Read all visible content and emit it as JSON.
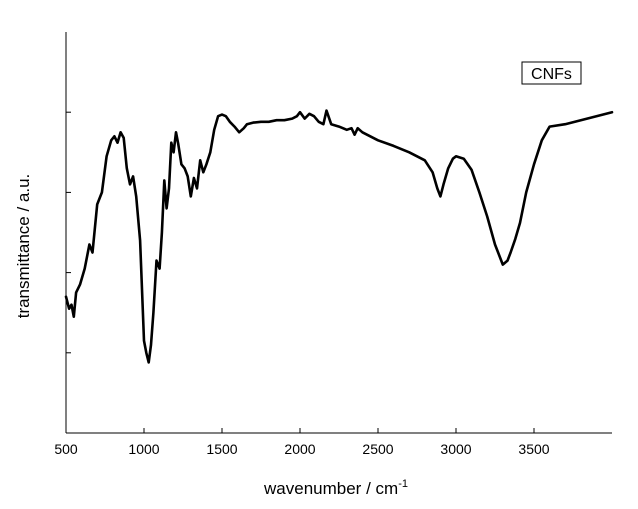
{
  "chart_data": {
    "type": "line",
    "xlabel": "wavenumber / cm",
    "xlabel_superscript": "-1",
    "ylabel": "transmittance / a.u.",
    "xlim": [
      500,
      4000
    ],
    "ylim": [
      0,
      5
    ],
    "x_ticks": [
      500,
      1000,
      1500,
      2000,
      2500,
      3000,
      3500
    ],
    "x_tick_labels": [
      "500",
      "1000",
      "1500",
      "2000",
      "2500",
      "3000",
      "3500"
    ],
    "y_ticks": [
      1,
      2,
      3,
      4
    ],
    "y_tick_labels_shown": false,
    "grid": false,
    "legend": {
      "label": "CNFs",
      "placement": "top-right",
      "boxed": true
    },
    "series": [
      {
        "name": "CNFs",
        "color": "#000000",
        "x": [
          500,
          520,
          535,
          550,
          565,
          590,
          620,
          650,
          670,
          700,
          730,
          760,
          790,
          810,
          830,
          850,
          870,
          890,
          910,
          930,
          950,
          975,
          1000,
          1015,
          1030,
          1045,
          1060,
          1080,
          1100,
          1115,
          1130,
          1145,
          1160,
          1175,
          1190,
          1205,
          1220,
          1240,
          1260,
          1280,
          1300,
          1320,
          1340,
          1360,
          1380,
          1400,
          1425,
          1450,
          1475,
          1500,
          1525,
          1550,
          1580,
          1610,
          1640,
          1660,
          1700,
          1750,
          1800,
          1850,
          1900,
          1950,
          1980,
          2000,
          2030,
          2060,
          2090,
          2120,
          2150,
          2170,
          2200,
          2250,
          2300,
          2330,
          2350,
          2370,
          2400,
          2500,
          2600,
          2700,
          2800,
          2850,
          2880,
          2900,
          2920,
          2950,
          2980,
          3000,
          3050,
          3100,
          3150,
          3200,
          3250,
          3280,
          3300,
          3330,
          3350,
          3380,
          3410,
          3450,
          3500,
          3550,
          3600,
          3700,
          3800,
          3900,
          4000
        ],
        "y": [
          1.7,
          1.55,
          1.6,
          1.45,
          1.75,
          1.85,
          2.05,
          2.35,
          2.25,
          2.85,
          3.0,
          3.45,
          3.65,
          3.7,
          3.62,
          3.75,
          3.68,
          3.3,
          3.1,
          3.2,
          2.95,
          2.4,
          1.15,
          1.0,
          0.88,
          1.1,
          1.5,
          2.15,
          2.05,
          2.5,
          3.15,
          2.8,
          3.05,
          3.62,
          3.5,
          3.75,
          3.6,
          3.35,
          3.3,
          3.2,
          2.95,
          3.18,
          3.05,
          3.4,
          3.25,
          3.35,
          3.5,
          3.78,
          3.95,
          3.97,
          3.95,
          3.88,
          3.82,
          3.75,
          3.8,
          3.85,
          3.87,
          3.88,
          3.88,
          3.9,
          3.9,
          3.92,
          3.95,
          4.0,
          3.92,
          3.98,
          3.95,
          3.88,
          3.85,
          4.02,
          3.85,
          3.82,
          3.78,
          3.8,
          3.72,
          3.8,
          3.75,
          3.65,
          3.58,
          3.5,
          3.4,
          3.25,
          3.05,
          2.95,
          3.1,
          3.3,
          3.42,
          3.45,
          3.42,
          3.28,
          3.0,
          2.7,
          2.35,
          2.2,
          2.1,
          2.15,
          2.25,
          2.42,
          2.62,
          3.0,
          3.35,
          3.65,
          3.82,
          3.85,
          3.9,
          3.95,
          4.0
        ]
      }
    ]
  }
}
